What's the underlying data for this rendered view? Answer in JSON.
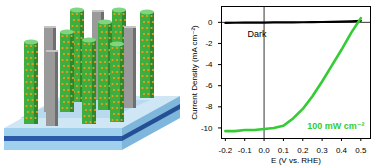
{
  "chart_data": {
    "type": "line",
    "x_label": "E (V vs. RHE)",
    "y_label": "Current Density (mA cm⁻²)",
    "x": [
      -0.2,
      -0.15,
      -0.1,
      -0.05,
      0,
      0.05,
      0.1,
      0.15,
      0.2,
      0.25,
      0.3,
      0.35,
      0.4,
      0.45,
      0.5
    ],
    "series": [
      {
        "name": "Dark",
        "color": "#000000",
        "values": [
          -0.05,
          -0.04,
          -0.03,
          -0.03,
          -0.02,
          -0.01,
          0,
          0,
          0.01,
          0.02,
          0.03,
          0.05,
          0.07,
          0.1,
          0.15
        ]
      },
      {
        "name": "100 mW cm⁻²",
        "color": "#33cc33",
        "values": [
          -10.3,
          -10.3,
          -10.2,
          -10.2,
          -10.1,
          -10.0,
          -9.8,
          -9.1,
          -8.2,
          -7.0,
          -5.6,
          -4.1,
          -2.6,
          -1.0,
          0.4
        ]
      }
    ],
    "xlim": [
      -0.22,
      0.55
    ],
    "ylim": [
      -11,
      1.5
    ],
    "xticks": [
      -0.2,
      -0.1,
      {
        "value": 0,
        "label": "0.0"
      },
      0.1,
      0.2,
      0.3,
      0.4,
      0.5
    ],
    "yticks": [
      0,
      -2,
      -4,
      -6,
      -8,
      -10
    ],
    "grid": false
  }
}
